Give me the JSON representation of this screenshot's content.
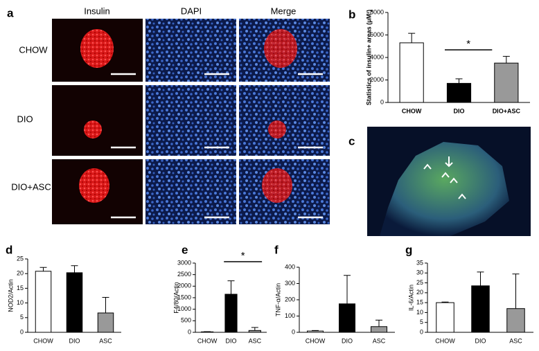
{
  "figure": {
    "panel_a": {
      "letter": "a",
      "columns": [
        "Insulin",
        "DAPI",
        "Merge"
      ],
      "rows": [
        "CHOW",
        "DIO",
        "DIO+ASC"
      ]
    },
    "panel_c": {
      "letter": "c"
    }
  },
  "chart_data": [
    {
      "type": "bar",
      "panel": "b",
      "ylabel": "Statistics of insulin+ areas (μM²)",
      "categories": [
        "CHOW",
        "DIO",
        "DIO+ASC"
      ],
      "values": [
        5300,
        1700,
        3500
      ],
      "errors": [
        850,
        400,
        600
      ],
      "colors": [
        "#ffffff",
        "#000000",
        "#999999"
      ],
      "ylim": [
        0,
        8000
      ],
      "yticks": [
        0,
        2000,
        4000,
        6000,
        8000
      ],
      "annotation": "*"
    },
    {
      "type": "bar",
      "panel": "d",
      "ylabel": "NOD2/Actin",
      "categories": [
        "CHOW",
        "DIO",
        "ASC"
      ],
      "values": [
        20.8,
        20.3,
        6.6
      ],
      "errors": [
        1.3,
        2.4,
        5.3
      ],
      "colors": [
        "#ffffff",
        "#000000",
        "#999999"
      ],
      "ylim": [
        0,
        25
      ],
      "yticks": [
        0,
        5,
        10,
        15,
        20,
        25
      ]
    },
    {
      "type": "bar",
      "panel": "e",
      "ylabel": "F4/80/Actin",
      "categories": [
        "CHOW",
        "DIO",
        "ASC"
      ],
      "values": [
        20,
        1650,
        80
      ],
      "errors": [
        10,
        580,
        130
      ],
      "colors": [
        "#ffffff",
        "#000000",
        "#999999"
      ],
      "ylim": [
        0,
        3000
      ],
      "yticks": [
        0,
        500,
        1000,
        1500,
        2000,
        2500,
        3000
      ],
      "annotation": "*"
    },
    {
      "type": "bar",
      "panel": "f",
      "ylabel": "TNF-α/Actin",
      "categories": [
        "CHOW",
        "DIO",
        "ASC"
      ],
      "values": [
        8,
        175,
        35
      ],
      "errors": [
        3,
        175,
        40
      ],
      "colors": [
        "#ffffff",
        "#000000",
        "#999999"
      ],
      "ylim": [
        0,
        400
      ],
      "yticks": [
        0,
        100,
        200,
        300,
        400
      ]
    },
    {
      "type": "bar",
      "panel": "g",
      "ylabel": "IL-6/Actin",
      "categories": [
        "CHOW",
        "DIO",
        "ASC"
      ],
      "values": [
        15,
        23.5,
        12
      ],
      "errors": [
        0.3,
        7,
        17.5
      ],
      "colors": [
        "#ffffff",
        "#000000",
        "#999999"
      ],
      "ylim": [
        0,
        35
      ],
      "yticks": [
        0,
        5,
        10,
        15,
        20,
        25,
        30,
        35
      ]
    }
  ]
}
